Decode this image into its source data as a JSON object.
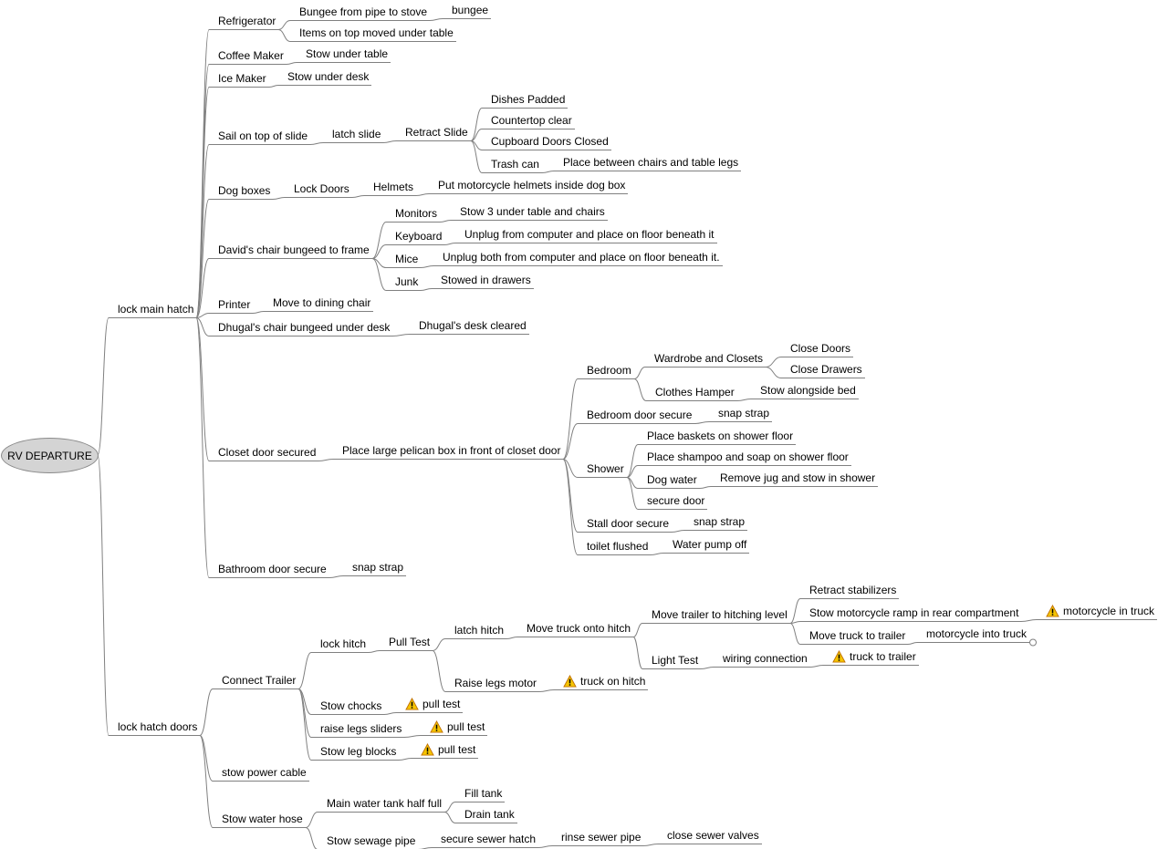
{
  "colors": {
    "edge": "#808080",
    "root_fill": "#d4d4d4",
    "warning": "#f5c400"
  },
  "map": {
    "root": {
      "label": "RV DEPARTURE",
      "children": [
        {
          "label": "lock main hatch",
          "children": [
            {
              "label": "Refrigerator",
              "children": [
                {
                  "label": "Bungee from pipe to stove",
                  "children": [
                    {
                      "label": "bungee"
                    }
                  ]
                },
                {
                  "label": "Items on top moved under table"
                }
              ]
            },
            {
              "label": "Coffee Maker",
              "children": [
                {
                  "label": "Stow under table"
                }
              ]
            },
            {
              "label": "Ice Maker",
              "children": [
                {
                  "label": "Stow under desk"
                }
              ]
            },
            {
              "label": "Sail on top of slide",
              "children": [
                {
                  "label": "latch slide",
                  "children": [
                    {
                      "label": "Retract Slide",
                      "children": [
                        {
                          "label": "Dishes Padded"
                        },
                        {
                          "label": "Countertop clear"
                        },
                        {
                          "label": "Cupboard Doors Closed"
                        },
                        {
                          "label": "Trash can",
                          "children": [
                            {
                              "label": "Place between chairs and table legs"
                            }
                          ]
                        }
                      ]
                    }
                  ]
                }
              ]
            },
            {
              "label": "Dog boxes",
              "children": [
                {
                  "label": "Lock Doors",
                  "children": [
                    {
                      "label": "Helmets",
                      "children": [
                        {
                          "label": "Put motorcycle helmets inside dog box"
                        }
                      ]
                    }
                  ]
                }
              ]
            },
            {
              "label": "David's chair bungeed to frame",
              "children": [
                {
                  "label": "Monitors",
                  "children": [
                    {
                      "label": "Stow 3 under table and chairs"
                    }
                  ]
                },
                {
                  "label": "Keyboard",
                  "children": [
                    {
                      "label": "Unplug from computer and place on floor beneath it"
                    }
                  ]
                },
                {
                  "label": "Mice",
                  "children": [
                    {
                      "label": "Unplug both from computer and place on floor beneath it."
                    }
                  ]
                },
                {
                  "label": "Junk",
                  "children": [
                    {
                      "label": "Stowed in drawers"
                    }
                  ]
                }
              ]
            },
            {
              "label": "Printer",
              "children": [
                {
                  "label": "Move to dining chair"
                }
              ]
            },
            {
              "label": "Dhugal's chair bungeed under desk",
              "children": [
                {
                  "label": "Dhugal's desk cleared"
                }
              ]
            },
            {
              "label": "Closet door secured",
              "children": [
                {
                  "label": "Place large pelican box in front of closet door",
                  "children": [
                    {
                      "label": "Bedroom",
                      "children": [
                        {
                          "label": "Wardrobe and Closets",
                          "children": [
                            {
                              "label": "Close Doors"
                            },
                            {
                              "label": "Close Drawers"
                            }
                          ]
                        },
                        {
                          "label": "Clothes Hamper",
                          "children": [
                            {
                              "label": "Stow alongside bed"
                            }
                          ]
                        }
                      ]
                    },
                    {
                      "label": "Bedroom door secure",
                      "children": [
                        {
                          "label": "snap strap"
                        }
                      ]
                    },
                    {
                      "label": "Shower",
                      "children": [
                        {
                          "label": "Place baskets on shower floor"
                        },
                        {
                          "label": "Place shampoo and soap on shower floor"
                        },
                        {
                          "label": "Dog water",
                          "children": [
                            {
                              "label": "Remove jug and stow in shower"
                            }
                          ]
                        },
                        {
                          "label": "secure door"
                        }
                      ]
                    },
                    {
                      "label": "Stall door secure",
                      "children": [
                        {
                          "label": "snap strap"
                        }
                      ]
                    },
                    {
                      "label": "toilet flushed",
                      "children": [
                        {
                          "label": "Water pump off"
                        }
                      ]
                    }
                  ]
                }
              ]
            },
            {
              "label": "Bathroom door secure",
              "children": [
                {
                  "label": "snap strap"
                }
              ]
            }
          ]
        },
        {
          "label": "lock hatch doors",
          "children": [
            {
              "label": "Connect Trailer",
              "children": [
                {
                  "label": "lock hitch",
                  "children": [
                    {
                      "label": "Pull Test",
                      "children": [
                        {
                          "label": "latch hitch",
                          "children": [
                            {
                              "label": "Move truck onto hitch",
                              "children": [
                                {
                                  "label": "Move trailer to hitching level",
                                  "children": [
                                    {
                                      "label": "Retract stabilizers"
                                    },
                                    {
                                      "label": "Stow motorcycle ramp in rear compartment",
                                      "children": [
                                        {
                                          "label": "motorcycle in truck",
                                          "icon": "warning-icon"
                                        }
                                      ]
                                    },
                                    {
                                      "label": "Move truck to trailer",
                                      "children": [
                                        {
                                          "label": "motorcycle into truck",
                                          "folded": true
                                        }
                                      ]
                                    }
                                  ]
                                },
                                {
                                  "label": "Light Test",
                                  "children": [
                                    {
                                      "label": "wiring connection",
                                      "children": [
                                        {
                                          "label": "truck to trailer",
                                          "icon": "warning-icon"
                                        }
                                      ]
                                    }
                                  ]
                                }
                              ]
                            }
                          ]
                        },
                        {
                          "label": "Raise legs motor",
                          "children": [
                            {
                              "label": "truck on hitch",
                              "icon": "warning-icon"
                            }
                          ]
                        }
                      ]
                    }
                  ]
                },
                {
                  "label": "Stow chocks",
                  "children": [
                    {
                      "label": "pull test",
                      "icon": "warning-icon"
                    }
                  ]
                },
                {
                  "label": "raise legs sliders",
                  "children": [
                    {
                      "label": "pull test",
                      "icon": "warning-icon"
                    }
                  ]
                },
                {
                  "label": "Stow leg blocks",
                  "children": [
                    {
                      "label": "pull test",
                      "icon": "warning-icon"
                    }
                  ]
                }
              ]
            },
            {
              "label": "stow power cable"
            },
            {
              "label": "Stow water hose",
              "children": [
                {
                  "label": "Main water tank half full",
                  "children": [
                    {
                      "label": "Fill tank"
                    },
                    {
                      "label": "Drain tank"
                    }
                  ]
                },
                {
                  "label": "Stow sewage pipe",
                  "children": [
                    {
                      "label": "secure sewer hatch",
                      "children": [
                        {
                          "label": "rinse sewer pipe",
                          "children": [
                            {
                              "label": "close sewer valves"
                            }
                          ]
                        }
                      ]
                    }
                  ]
                }
              ]
            }
          ]
        }
      ]
    }
  }
}
